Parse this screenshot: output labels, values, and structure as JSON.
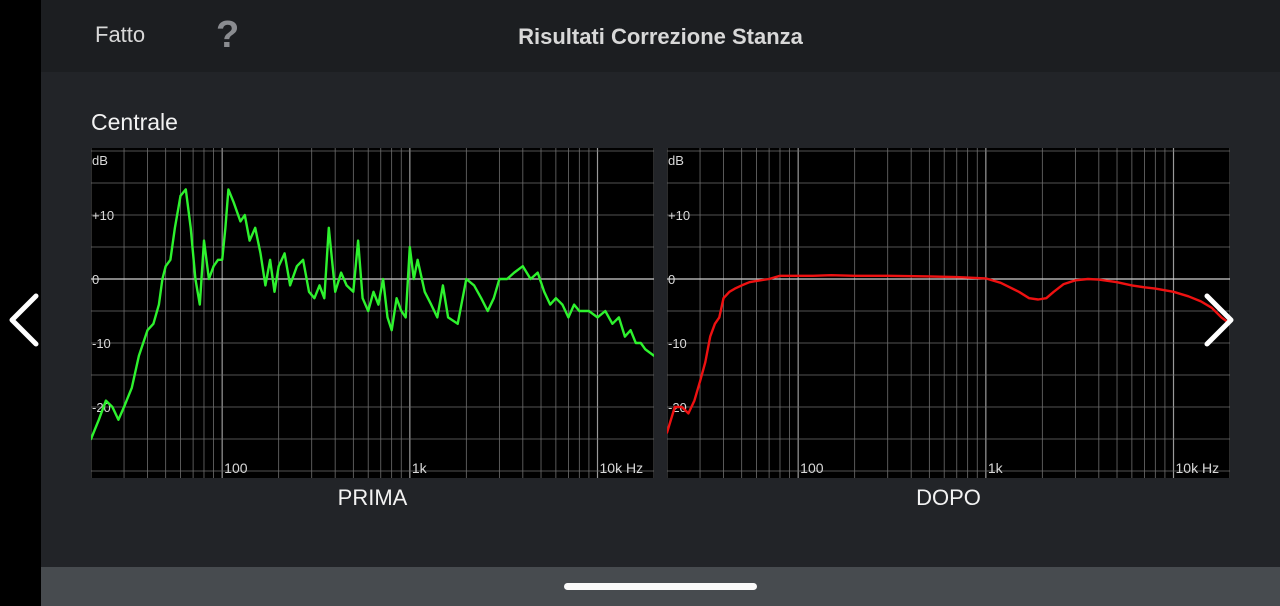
{
  "header": {
    "done_label": "Fatto",
    "help_label": "?",
    "title": "Risultati Correzione Stanza"
  },
  "speaker": "Centrale",
  "icons": {
    "prev": "chevron-left-icon",
    "next": "chevron-right-icon"
  },
  "colors": {
    "before": "#2ef22e",
    "after": "#ee1111",
    "grid": "#6e6e6e",
    "zero": "#cfcfcf"
  },
  "chart_data": [
    {
      "type": "line",
      "title": "",
      "label": "PRIMA",
      "ylabel": "dB",
      "xscale": "log",
      "xlim": [
        20,
        20000
      ],
      "ylim": [
        -30,
        20
      ],
      "x_ticks": [
        "100",
        "1k",
        "10k Hz"
      ],
      "y_ticks": [
        "+10",
        "0",
        "-10",
        "-20"
      ],
      "series": [
        {
          "x": [
            20,
            22,
            24,
            26,
            28,
            30,
            33,
            36,
            40,
            43,
            46,
            48,
            50,
            53,
            56,
            60,
            64,
            68,
            72,
            76,
            80,
            85,
            90,
            95,
            100,
            104,
            108,
            115,
            125,
            132,
            140,
            150,
            160,
            170,
            180,
            190,
            200,
            215,
            230,
            250,
            270,
            290,
            310,
            330,
            350,
            370,
            400,
            430,
            460,
            500,
            530,
            560,
            600,
            640,
            680,
            720,
            760,
            800,
            850,
            900,
            950,
            1000,
            1050,
            1100,
            1200,
            1300,
            1400,
            1500,
            1600,
            1800,
            2000,
            2200,
            2400,
            2600,
            2800,
            3000,
            3300,
            3600,
            4000,
            4400,
            4800,
            5200,
            5600,
            6000,
            6500,
            7000,
            7500,
            8000,
            9000,
            10000,
            11000,
            12000,
            13000,
            14000,
            15000,
            16000,
            17000,
            18000,
            20000
          ],
          "y": [
            -25,
            -22,
            -19,
            -20,
            -22,
            -20,
            -17,
            -12,
            -8,
            -7,
            -4,
            0,
            2,
            3,
            8,
            13,
            14,
            8,
            0,
            -4,
            6,
            0,
            2,
            3,
            3,
            8,
            14,
            12,
            9,
            10,
            6,
            8,
            4,
            -1,
            3,
            -2,
            2,
            4,
            -1,
            2,
            3,
            -2,
            -3,
            -1,
            -3,
            8,
            -2,
            1,
            -1,
            -2,
            6,
            -3,
            -5,
            -2,
            -4,
            0,
            -6,
            -8,
            -3,
            -5,
            -6,
            5,
            0,
            3,
            -2,
            -4,
            -6,
            -1,
            -6,
            -7,
            0,
            -1,
            -3,
            -5,
            -3,
            0,
            0,
            1,
            2,
            0,
            1,
            -2,
            -4,
            -3,
            -4,
            -6,
            -4,
            -5,
            -5,
            -6,
            -5,
            -7,
            -6,
            -9,
            -8,
            -10,
            -10,
            -11,
            -12
          ]
        }
      ]
    },
    {
      "type": "line",
      "title": "",
      "label": "DOPO",
      "ylabel": "dB",
      "xscale": "log",
      "xlim": [
        20,
        20000
      ],
      "ylim": [
        -30,
        20
      ],
      "x_ticks": [
        "100",
        "1k",
        "10k Hz"
      ],
      "y_ticks": [
        "+10",
        "0",
        "-10",
        "-20"
      ],
      "series": [
        {
          "x": [
            20,
            22,
            24,
            26,
            28,
            30,
            32,
            34,
            36,
            38,
            40,
            43,
            46,
            50,
            55,
            60,
            70,
            80,
            100,
            120,
            150,
            200,
            300,
            500,
            700,
            1000,
            1200,
            1500,
            1700,
            1900,
            2100,
            2300,
            2600,
            3000,
            3500,
            4000,
            5000,
            6000,
            7000,
            8000,
            10000,
            12000,
            14000,
            16000,
            18000,
            20000
          ],
          "y": [
            -24,
            -20,
            -20,
            -21,
            -19,
            -16,
            -13,
            -9,
            -7,
            -6,
            -3,
            -2,
            -1.5,
            -1,
            -0.5,
            -0.3,
            0,
            0.5,
            0.5,
            0.5,
            0.6,
            0.5,
            0.5,
            0.4,
            0.3,
            0.1,
            -0.6,
            -2,
            -3,
            -3.2,
            -3,
            -2,
            -0.8,
            -0.2,
            0,
            -0.1,
            -0.5,
            -1,
            -1.3,
            -1.5,
            -2,
            -2.7,
            -3.5,
            -4.5,
            -6,
            -7
          ]
        }
      ]
    }
  ]
}
